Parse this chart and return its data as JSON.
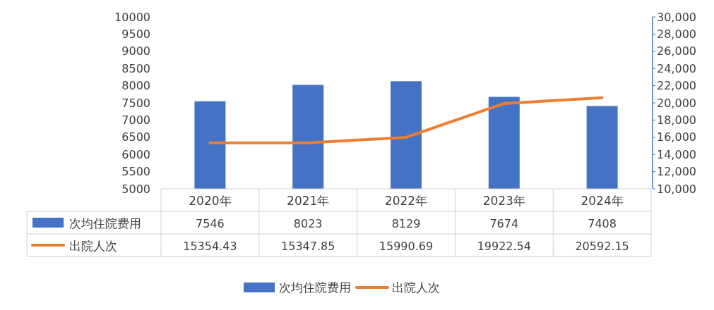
{
  "chart_data": {
    "type": "bar",
    "categories": [
      "2020年",
      "2021年",
      "2022年",
      "2023年",
      "2024年"
    ],
    "series": [
      {
        "name": "次均住院费用",
        "color": "#4472c4",
        "values": [
          7546,
          8023,
          8129,
          7674,
          7408
        ]
      },
      {
        "name": "出院人次",
        "color": "#ed7d31",
        "type": "line",
        "axis": "y2",
        "values": [
          15354.43,
          15347.85,
          15990.69,
          19922.54,
          20592.15
        ]
      }
    ],
    "ylim": [
      5000,
      10000
    ],
    "yticks": [
      5000,
      5500,
      6000,
      6500,
      7000,
      7500,
      8000,
      8500,
      9000,
      9500,
      10000
    ],
    "y2lim": [
      10000,
      30000
    ],
    "y2ticks": [
      {
        "value": 10000,
        "label": "10,000"
      },
      {
        "value": 12000,
        "label": "12,000"
      },
      {
        "value": 14000,
        "label": "14,000"
      },
      {
        "value": 16000,
        "label": "16,000"
      },
      {
        "value": 18000,
        "label": "18,000"
      },
      {
        "value": 20000,
        "label": "20,000"
      },
      {
        "value": 22000,
        "label": "22,000"
      },
      {
        "value": 24000,
        "label": "24,000"
      },
      {
        "value": 26000,
        "label": "26,000"
      },
      {
        "value": 28000,
        "label": "28,000"
      },
      {
        "value": 30000,
        "label": "30,000"
      }
    ],
    "data_labels": true,
    "legend": "bottom"
  }
}
